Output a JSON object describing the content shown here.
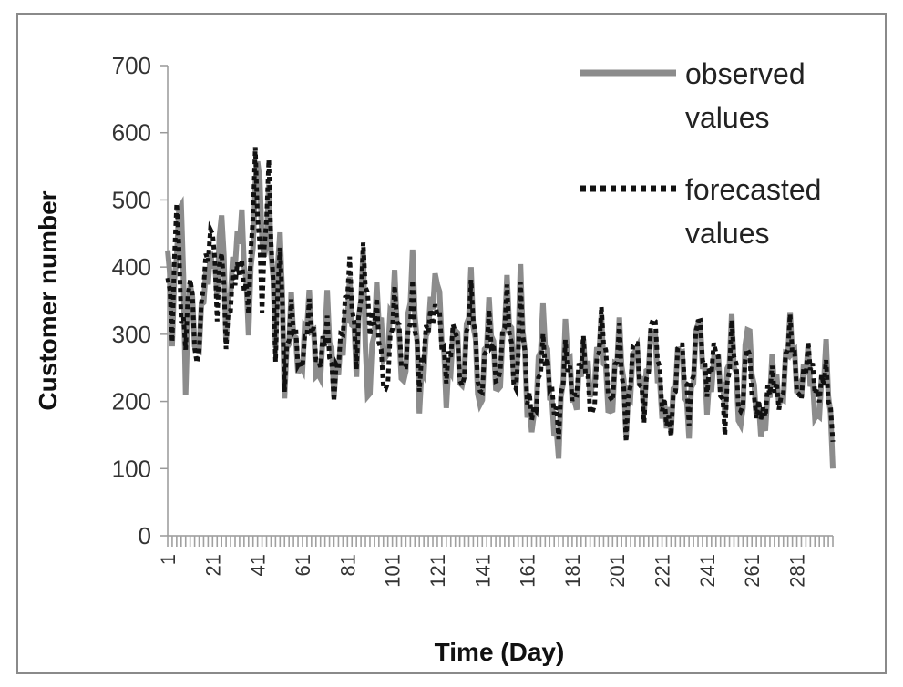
{
  "chart_data": {
    "type": "line",
    "title": "",
    "xlabel": "Time (Day)",
    "ylabel": "Customer number",
    "xlim": [
      1,
      297
    ],
    "ylim": [
      0,
      700
    ],
    "y_ticks": [
      "0",
      "100",
      "200",
      "300",
      "400",
      "500",
      "600",
      "700"
    ],
    "x_tick_labels": [
      "1",
      "21",
      "41",
      "61",
      "81",
      "101",
      "121",
      "141",
      "161",
      "181",
      "201",
      "221",
      "241",
      "261",
      "281"
    ],
    "x_tick_values": [
      1,
      21,
      41,
      61,
      81,
      101,
      121,
      141,
      161,
      181,
      201,
      221,
      241,
      261,
      281
    ],
    "grid": false,
    "legend_position": "top-right",
    "legend": {
      "observed_line1": "observed",
      "observed_line2": "values",
      "forecast_line1": "forecasted",
      "forecast_line2": "values"
    },
    "series": [
      {
        "name": "observed values",
        "color": "#8c8c8c",
        "style": "solid",
        "anchors": [
          [
            1,
            450
          ],
          [
            3,
            300
          ],
          [
            5,
            420
          ],
          [
            7,
            500
          ],
          [
            9,
            230
          ],
          [
            11,
            400
          ],
          [
            14,
            260
          ],
          [
            17,
            350
          ],
          [
            21,
            420
          ],
          [
            23,
            380
          ],
          [
            25,
            500
          ],
          [
            27,
            300
          ],
          [
            30,
            390
          ],
          [
            34,
            480
          ],
          [
            37,
            320
          ],
          [
            41,
            560
          ],
          [
            44,
            400
          ],
          [
            46,
            520
          ],
          [
            49,
            300
          ],
          [
            51,
            460
          ],
          [
            53,
            210
          ],
          [
            56,
            350
          ],
          [
            60,
            240
          ],
          [
            64,
            340
          ],
          [
            68,
            230
          ],
          [
            72,
            350
          ],
          [
            75,
            210
          ],
          [
            79,
            290
          ],
          [
            82,
            380
          ],
          [
            85,
            250
          ],
          [
            88,
            400
          ],
          [
            90,
            190
          ],
          [
            94,
            370
          ],
          [
            98,
            240
          ],
          [
            102,
            380
          ],
          [
            106,
            220
          ],
          [
            110,
            400
          ],
          [
            113,
            200
          ],
          [
            117,
            330
          ],
          [
            121,
            380
          ],
          [
            125,
            210
          ],
          [
            129,
            330
          ],
          [
            132,
            200
          ],
          [
            136,
            380
          ],
          [
            140,
            190
          ],
          [
            144,
            330
          ],
          [
            148,
            200
          ],
          [
            152,
            380
          ],
          [
            156,
            200
          ],
          [
            158,
            380
          ],
          [
            161,
            200
          ],
          [
            164,
            170
          ],
          [
            168,
            320
          ],
          [
            172,
            190
          ],
          [
            175,
            140
          ],
          [
            178,
            300
          ],
          [
            182,
            180
          ],
          [
            186,
            290
          ],
          [
            190,
            200
          ],
          [
            194,
            310
          ],
          [
            198,
            180
          ],
          [
            202,
            300
          ],
          [
            205,
            160
          ],
          [
            209,
            300
          ],
          [
            213,
            190
          ],
          [
            217,
            310
          ],
          [
            221,
            200
          ],
          [
            225,
            160
          ],
          [
            229,
            290
          ],
          [
            233,
            170
          ],
          [
            237,
            320
          ],
          [
            241,
            200
          ],
          [
            245,
            280
          ],
          [
            249,
            180
          ],
          [
            252,
            310
          ],
          [
            256,
            160
          ],
          [
            259,
            320
          ],
          [
            262,
            200
          ],
          [
            266,
            160
          ],
          [
            270,
            250
          ],
          [
            274,
            180
          ],
          [
            278,
            330
          ],
          [
            282,
            200
          ],
          [
            286,
            260
          ],
          [
            290,
            180
          ],
          [
            294,
            270
          ],
          [
            297,
            100
          ]
        ]
      },
      {
        "name": "forecasted values",
        "color": "#111111",
        "style": "dotted",
        "anchors": [
          [
            1,
            400
          ],
          [
            3,
            310
          ],
          [
            5,
            515
          ],
          [
            7,
            330
          ],
          [
            9,
            280
          ],
          [
            11,
            390
          ],
          [
            14,
            250
          ],
          [
            17,
            390
          ],
          [
            21,
            450
          ],
          [
            23,
            330
          ],
          [
            25,
            440
          ],
          [
            27,
            300
          ],
          [
            30,
            380
          ],
          [
            34,
            390
          ],
          [
            37,
            350
          ],
          [
            40,
            570
          ],
          [
            43,
            340
          ],
          [
            46,
            540
          ],
          [
            49,
            280
          ],
          [
            51,
            450
          ],
          [
            53,
            230
          ],
          [
            56,
            330
          ],
          [
            60,
            250
          ],
          [
            64,
            340
          ],
          [
            68,
            240
          ],
          [
            72,
            320
          ],
          [
            75,
            220
          ],
          [
            79,
            300
          ],
          [
            82,
            400
          ],
          [
            85,
            270
          ],
          [
            88,
            420
          ],
          [
            91,
            300
          ],
          [
            94,
            340
          ],
          [
            98,
            210
          ],
          [
            102,
            350
          ],
          [
            106,
            240
          ],
          [
            110,
            370
          ],
          [
            113,
            220
          ],
          [
            117,
            320
          ],
          [
            121,
            350
          ],
          [
            125,
            230
          ],
          [
            129,
            320
          ],
          [
            132,
            220
          ],
          [
            136,
            360
          ],
          [
            140,
            200
          ],
          [
            144,
            330
          ],
          [
            148,
            210
          ],
          [
            152,
            360
          ],
          [
            156,
            210
          ],
          [
            158,
            360
          ],
          [
            161,
            200
          ],
          [
            164,
            180
          ],
          [
            168,
            290
          ],
          [
            172,
            200
          ],
          [
            175,
            160
          ],
          [
            178,
            290
          ],
          [
            182,
            190
          ],
          [
            186,
            280
          ],
          [
            190,
            180
          ],
          [
            194,
            320
          ],
          [
            198,
            190
          ],
          [
            202,
            310
          ],
          [
            205,
            150
          ],
          [
            209,
            300
          ],
          [
            213,
            190
          ],
          [
            217,
            330
          ],
          [
            221,
            200
          ],
          [
            225,
            170
          ],
          [
            229,
            290
          ],
          [
            233,
            180
          ],
          [
            237,
            340
          ],
          [
            241,
            210
          ],
          [
            245,
            290
          ],
          [
            249,
            170
          ],
          [
            252,
            300
          ],
          [
            256,
            170
          ],
          [
            259,
            300
          ],
          [
            262,
            190
          ],
          [
            266,
            170
          ],
          [
            270,
            250
          ],
          [
            274,
            190
          ],
          [
            278,
            310
          ],
          [
            282,
            210
          ],
          [
            286,
            270
          ],
          [
            290,
            200
          ],
          [
            294,
            260
          ],
          [
            297,
            140
          ]
        ]
      }
    ]
  }
}
